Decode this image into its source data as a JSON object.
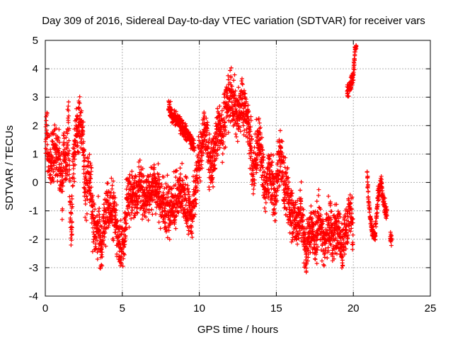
{
  "chart_data": {
    "type": "scatter",
    "title": "Day 309 of 2016, Sidereal Day-to-day VTEC variation (SDTVAR) for receiver vars",
    "xlabel": "GPS time / hours",
    "ylabel": "SDTVAR / TECUs",
    "xlim": [
      0,
      25
    ],
    "ylim": [
      -4,
      5
    ],
    "xticks": [
      "0",
      "5",
      "10",
      "15",
      "20",
      "25"
    ],
    "yticks": [
      "-4",
      "-3",
      "-2",
      "-1",
      "0",
      "1",
      "2",
      "3",
      "4",
      "5"
    ],
    "grid": true,
    "marker": "plus",
    "color": "#ff0000",
    "series": [
      {
        "name": "SDTVAR",
        "trend": [
          [
            0.0,
            1.0
          ],
          [
            0.1,
            2.0
          ],
          [
            0.2,
            0.8
          ],
          [
            0.4,
            0.6
          ],
          [
            0.6,
            1.3
          ],
          [
            0.8,
            1.0
          ],
          [
            1.0,
            0.5
          ],
          [
            1.1,
            -0.5
          ],
          [
            1.2,
            1.5
          ],
          [
            1.3,
            0.4
          ],
          [
            1.4,
            1.0
          ],
          [
            1.5,
            2.0
          ],
          [
            1.6,
            -0.5
          ],
          [
            1.7,
            -1.8
          ],
          [
            1.8,
            0.5
          ],
          [
            1.9,
            1.2
          ],
          [
            2.0,
            1.5
          ],
          [
            2.2,
            2.2
          ],
          [
            2.4,
            1.8
          ],
          [
            2.5,
            1.0
          ],
          [
            2.6,
            -0.5
          ],
          [
            2.8,
            0.5
          ],
          [
            3.0,
            -0.5
          ],
          [
            3.1,
            -1.5
          ],
          [
            3.3,
            -1.8
          ],
          [
            3.5,
            -1.5
          ],
          [
            3.6,
            -2.5
          ],
          [
            3.8,
            -1.5
          ],
          [
            4.0,
            -1.0
          ],
          [
            4.3,
            -0.8
          ],
          [
            4.6,
            -1.5
          ],
          [
            4.9,
            -2.3
          ],
          [
            5.1,
            -2.0
          ],
          [
            5.3,
            -0.7
          ],
          [
            5.6,
            -0.3
          ],
          [
            5.9,
            -0.5
          ],
          [
            6.2,
            -0.1
          ],
          [
            6.5,
            -0.5
          ],
          [
            6.8,
            -0.2
          ],
          [
            7.1,
            0.0
          ],
          [
            7.4,
            -0.6
          ],
          [
            7.7,
            -0.8
          ],
          [
            8.0,
            -1.0
          ],
          [
            8.3,
            -0.7
          ],
          [
            8.6,
            -0.4
          ],
          [
            8.9,
            -0.5
          ],
          [
            9.2,
            -0.9
          ],
          [
            9.5,
            -1.2
          ],
          [
            9.7,
            -0.5
          ],
          [
            9.9,
            0.5
          ],
          [
            10.1,
            1.0
          ],
          [
            10.3,
            2.0
          ],
          [
            10.5,
            1.5
          ],
          [
            10.7,
            0.5
          ],
          [
            10.9,
            0.8
          ],
          [
            11.1,
            1.5
          ],
          [
            11.3,
            2.0
          ],
          [
            11.5,
            1.8
          ],
          [
            11.7,
            2.5
          ],
          [
            11.9,
            2.8
          ],
          [
            12.1,
            3.0
          ],
          [
            12.3,
            2.6
          ],
          [
            12.5,
            2.2
          ],
          [
            12.7,
            2.8
          ],
          [
            12.9,
            2.6
          ],
          [
            13.1,
            2.4
          ],
          [
            13.3,
            1.5
          ],
          [
            13.5,
            0.3
          ],
          [
            13.7,
            1.0
          ],
          [
            13.9,
            1.5
          ],
          [
            14.1,
            0.5
          ],
          [
            14.3,
            -0.5
          ],
          [
            14.5,
            0.5
          ],
          [
            14.7,
            0.0
          ],
          [
            14.9,
            -0.5
          ],
          [
            15.1,
            0.5
          ],
          [
            15.3,
            1.0
          ],
          [
            15.5,
            0.0
          ],
          [
            15.7,
            -0.5
          ],
          [
            16.0,
            -1.0
          ],
          [
            16.3,
            -1.5
          ],
          [
            16.6,
            -1.0
          ],
          [
            16.9,
            -2.5
          ],
          [
            17.2,
            -1.5
          ],
          [
            17.5,
            -2.0
          ],
          [
            17.8,
            -1.2
          ],
          [
            18.1,
            -2.2
          ],
          [
            18.4,
            -1.5
          ],
          [
            18.7,
            -2.0
          ],
          [
            19.0,
            -1.3
          ],
          [
            19.3,
            -2.2
          ],
          [
            19.6,
            -1.5
          ],
          [
            19.8,
            -1.0
          ],
          [
            20.0,
            -2.0
          ]
        ],
        "segments": [
          {
            "note": "upper dashes",
            "points": [
              [
                8.0,
                2.7
              ],
              [
                8.2,
                2.4
              ],
              [
                8.5,
                2.2
              ],
              [
                8.8,
                2.0
              ],
              [
                9.1,
                1.8
              ],
              [
                9.4,
                1.5
              ],
              [
                9.7,
                1.2
              ]
            ]
          },
          {
            "note": "spike near 20h",
            "points": [
              [
                19.6,
                3.2
              ],
              [
                19.8,
                3.4
              ],
              [
                20.0,
                3.8
              ],
              [
                20.1,
                4.6
              ],
              [
                20.2,
                4.9
              ]
            ]
          },
          {
            "note": "cluster 21-22.5h",
            "points": [
              [
                20.9,
                0.3
              ],
              [
                21.0,
                -0.8
              ],
              [
                21.2,
                -1.6
              ],
              [
                21.4,
                -1.9
              ],
              [
                21.6,
                -0.5
              ],
              [
                21.8,
                0.0
              ],
              [
                22.0,
                -0.8
              ],
              [
                22.2,
                -1.2
              ]
            ]
          },
          {
            "note": "late points",
            "points": [
              [
                22.4,
                -1.9
              ],
              [
                22.5,
                -2.1
              ]
            ]
          }
        ]
      }
    ]
  }
}
